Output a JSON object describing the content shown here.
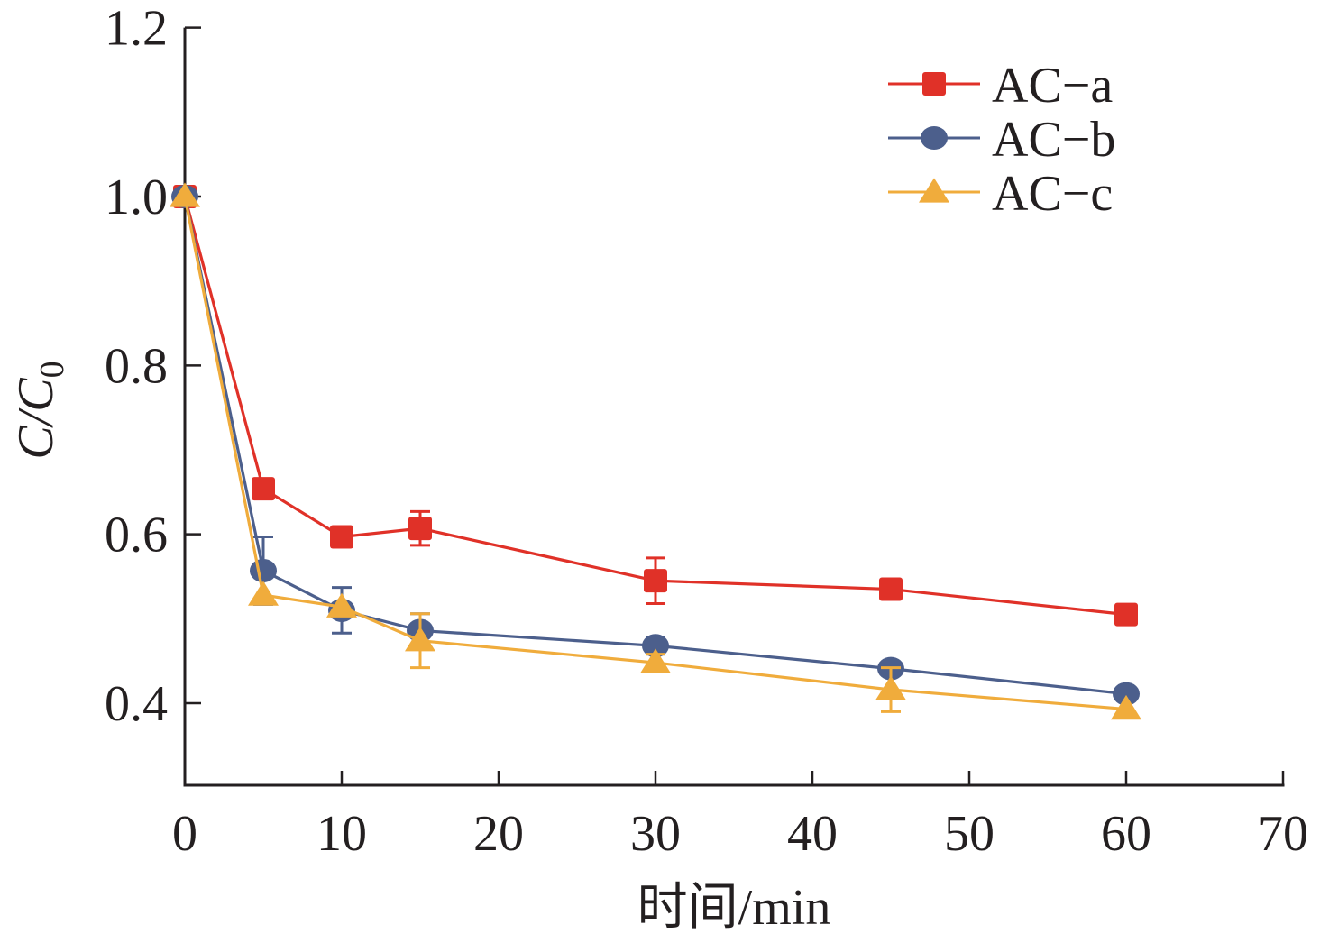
{
  "chart_data": {
    "type": "line",
    "title": "",
    "xlabel": "时间/min",
    "ylabel_main": "C/C",
    "ylabel_sub": "0",
    "xlim": [
      0,
      70
    ],
    "ylim": [
      0.3,
      1.2
    ],
    "xticks": [
      0,
      10,
      20,
      30,
      40,
      50,
      60,
      70
    ],
    "xtick_labels": [
      "0",
      "10",
      "20",
      "30",
      "40",
      "50",
      "60",
      "70"
    ],
    "yticks": [
      0.4,
      0.6,
      0.8,
      1.0,
      1.2
    ],
    "ytick_labels": [
      "0.4",
      "0.6",
      "0.8",
      "1.0",
      "1.2"
    ],
    "grid": false,
    "legend_position": "top-right",
    "x": [
      0,
      5,
      10,
      15,
      30,
      45,
      60
    ],
    "series": [
      {
        "name": "AC−a",
        "color": "#e03128",
        "marker": "square",
        "values": [
          1.0,
          0.654,
          0.597,
          0.607,
          0.545,
          0.535,
          0.505
        ],
        "errors": [
          0,
          0.005,
          0.005,
          0.02,
          0.027,
          0.01,
          0.01
        ]
      },
      {
        "name": "AC−b",
        "color": "#4c5f8c",
        "marker": "circle",
        "values": [
          1.0,
          0.557,
          0.51,
          0.486,
          0.468,
          0.441,
          0.411
        ],
        "errors": [
          0,
          0.04,
          0.027,
          0.02,
          0.01,
          0.005,
          0.005
        ]
      },
      {
        "name": "AC−c",
        "color": "#f0ac3c",
        "marker": "triangle",
        "values": [
          1.0,
          0.528,
          0.514,
          0.474,
          0.448,
          0.416,
          0.393
        ],
        "errors": [
          0,
          0.005,
          0.005,
          0.032,
          0.01,
          0.026,
          0.005
        ]
      }
    ]
  }
}
